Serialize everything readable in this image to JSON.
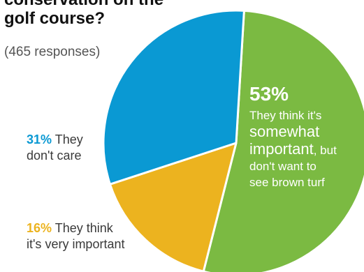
{
  "title_lines": [
    "conservation on the",
    "golf course?"
  ],
  "responses": "(465 responses)",
  "labels": {
    "green": {
      "pct": "53%",
      "desc_part1": "They think it's",
      "desc_big1": "somewhat",
      "desc_big2": "important",
      "desc_part2": ", but",
      "desc_part3": "don't want to",
      "desc_part4": "see brown turf"
    },
    "blue": {
      "pct": "31%",
      "text1": " They",
      "text2": "don't care"
    },
    "yellow": {
      "pct": "16%",
      "text1": " They think",
      "text2": "it's very important"
    }
  },
  "chart_data": {
    "type": "pie",
    "total_responses": 465,
    "slices": [
      {
        "label": "They think it's somewhat important, but don't want to see brown turf",
        "value": 53,
        "color": "#7bba42"
      },
      {
        "label": "They think it's very important",
        "value": 16,
        "color": "#ecb31f"
      },
      {
        "label": "They don't care",
        "value": 31,
        "color": "#0a99d3"
      }
    ]
  },
  "colors": {
    "green": "#7bba42",
    "yellow": "#ecb31f",
    "blue": "#0a99d3",
    "stroke": "#ffffff"
  }
}
